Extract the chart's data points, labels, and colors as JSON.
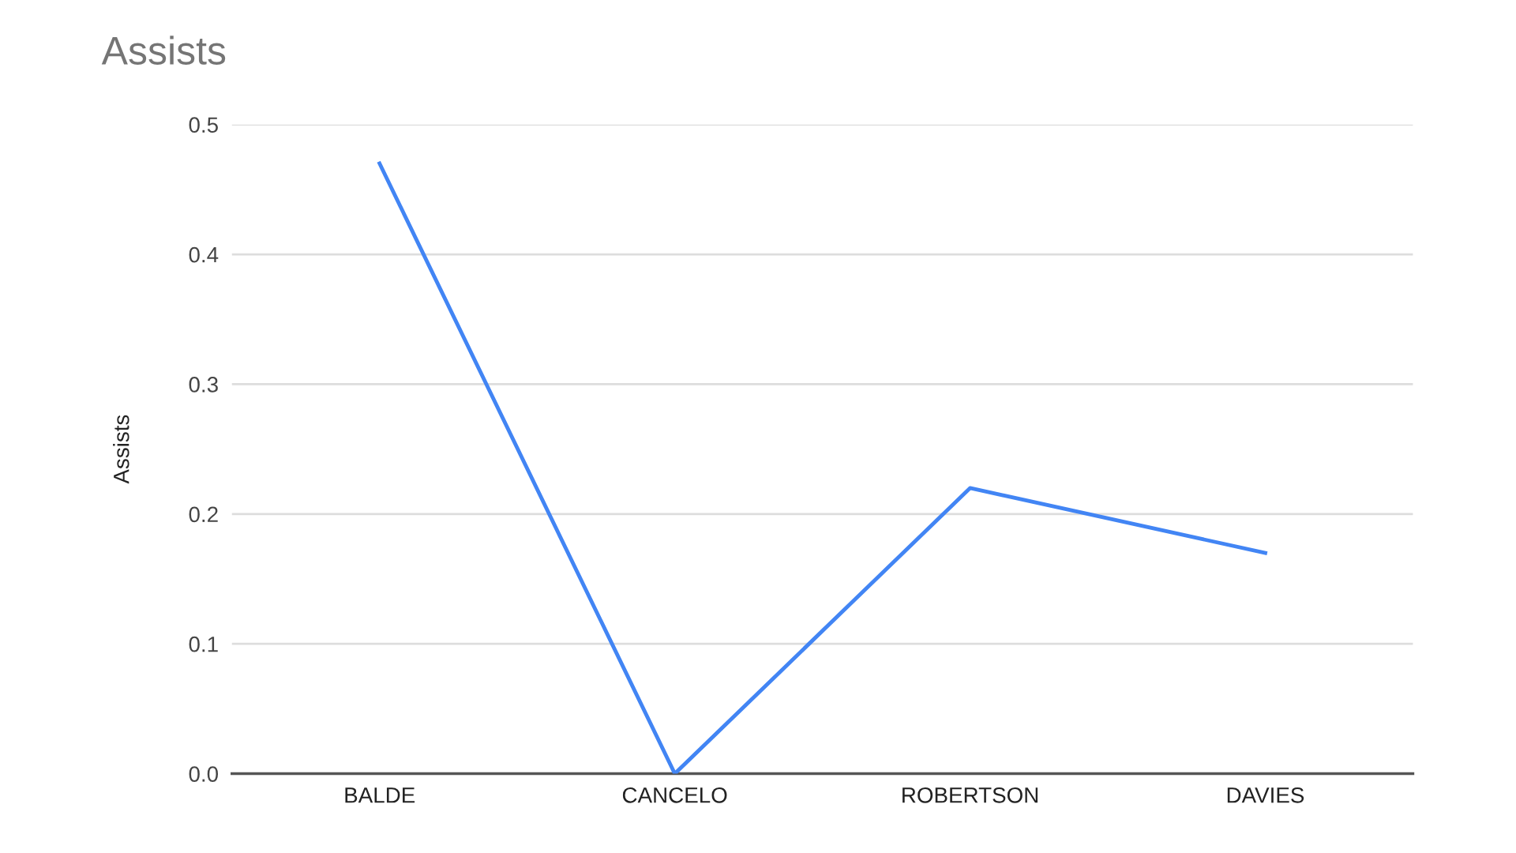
{
  "chart_data": {
    "type": "line",
    "title": "Assists",
    "ylabel": "Assists",
    "categories": [
      "BALDE",
      "CANCELO",
      "ROBERTSON",
      "DAVIES"
    ],
    "series": [
      {
        "color": "#4285f4",
        "values": [
          0.47,
          0,
          0.22,
          0.17
        ]
      }
    ],
    "ylim": [
      0,
      0.5
    ],
    "yticks": [
      {
        "value": 0,
        "label": "0.0"
      },
      {
        "value": 0.1,
        "label": "0.1"
      },
      {
        "value": 0.2,
        "label": "0.2"
      },
      {
        "value": 0.3,
        "label": "0.3"
      },
      {
        "value": 0.4,
        "label": "0.4"
      },
      {
        "value": 0.5,
        "label": "0.5"
      }
    ],
    "grid": "y",
    "legend": false,
    "marker": "none",
    "line_style": "solid"
  }
}
